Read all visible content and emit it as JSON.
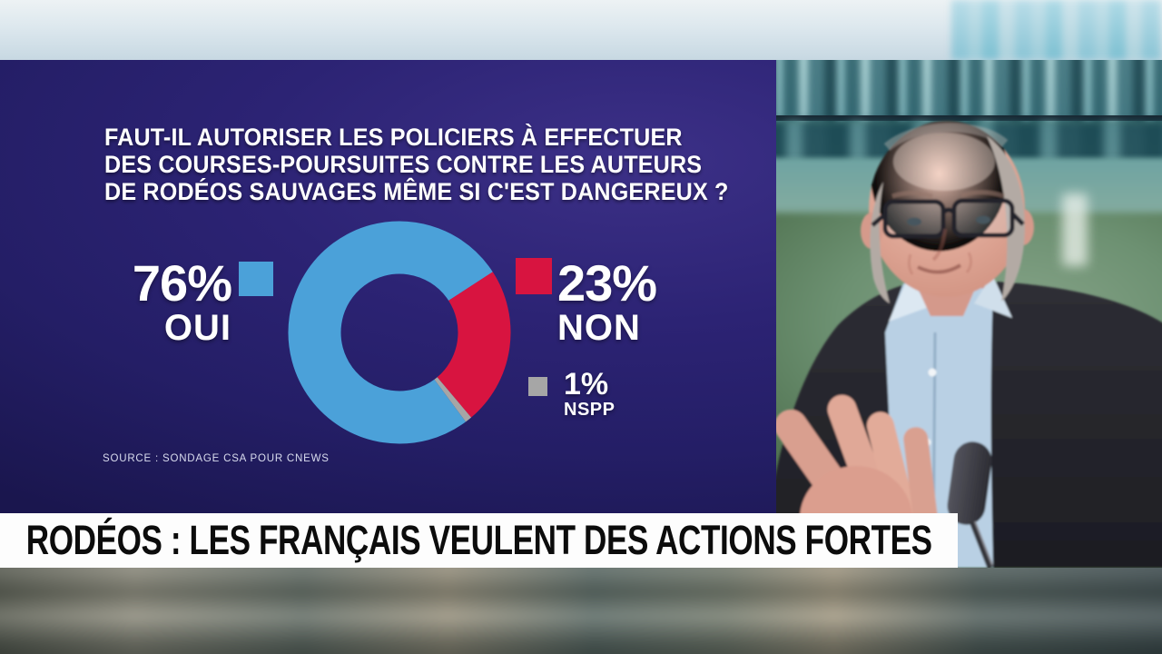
{
  "panel": {
    "question_lines": [
      "FAUT-IL AUTORISER LES POLICIERS À EFFECTUER",
      "DES COURSES-POURSUITES CONTRE LES AUTEURS",
      "DE RODÉOS SAUVAGES MÊME SI C'EST DANGEREUX ?"
    ],
    "source_text": "SOURCE : SONDAGE CSA POUR CNEWS",
    "bg_color": "#2c2374"
  },
  "chart_data": {
    "type": "pie",
    "subtype": "donut",
    "title": "FAUT-IL AUTORISER LES POLICIERS À EFFECTUER DES COURSES-POURSUITES CONTRE LES AUTEURS DE RODÉOS SAUVAGES MÊME SI C'EST DANGEREUX ?",
    "categories": [
      "OUI",
      "NON",
      "NSPP"
    ],
    "values": [
      76,
      23,
      1
    ],
    "colors": [
      "#4ba1d9",
      "#d81440",
      "#a6a6a6"
    ],
    "start_angle_deg": 143.4,
    "legend_position": "left-right",
    "source": "SONDAGE CSA POUR CNEWS"
  },
  "stats": [
    {
      "value": "76%",
      "label": "OUI",
      "color": "#4ba1d9"
    },
    {
      "value": "23%",
      "label": "NON",
      "color": "#d81440"
    },
    {
      "value": "1%",
      "label": "NSPP",
      "color": "#a6a6a6"
    }
  ],
  "banner": {
    "text": "RODÉOS : LES FRANÇAIS VEULENT DES ACTIONS FORTES",
    "bg_color": "#fdfdfd",
    "text_color": "#0c0c0c"
  }
}
